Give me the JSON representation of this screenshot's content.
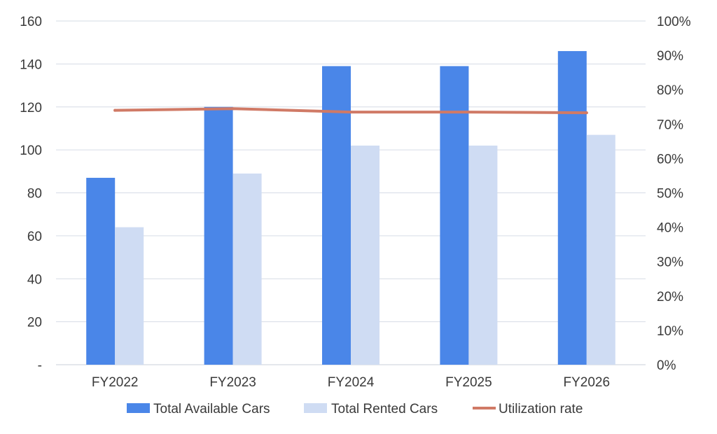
{
  "chart_data": {
    "type": "bar",
    "title": "",
    "xlabel": "",
    "ylabel": "",
    "categories": [
      "FY2022",
      "FY2023",
      "FY2024",
      "FY2025",
      "FY2026"
    ],
    "series": [
      {
        "name": "Total Available Cars",
        "type": "bar",
        "axis": "left",
        "color": "#4a86e8",
        "values": [
          87,
          120,
          139,
          139,
          146
        ]
      },
      {
        "name": "Total Rented Cars",
        "type": "bar",
        "axis": "left",
        "color": "#cfdcf3",
        "values": [
          64,
          89,
          102,
          102,
          107
        ]
      },
      {
        "name": "Utilization rate",
        "type": "line",
        "axis": "right",
        "color": "#d07a66",
        "values": [
          0.74,
          0.745,
          0.735,
          0.735,
          0.733
        ]
      }
    ],
    "ylim": [
      0,
      160
    ],
    "y2lim": [
      0,
      1
    ],
    "y_ticks": [
      "-",
      "20",
      "40",
      "60",
      "80",
      "100",
      "120",
      "140",
      "160"
    ],
    "y2_ticks": [
      "0%",
      "10%",
      "20%",
      "30%",
      "40%",
      "50%",
      "60%",
      "70%",
      "80%",
      "90%",
      "100%"
    ],
    "grid": true,
    "legend_position": "bottom"
  }
}
